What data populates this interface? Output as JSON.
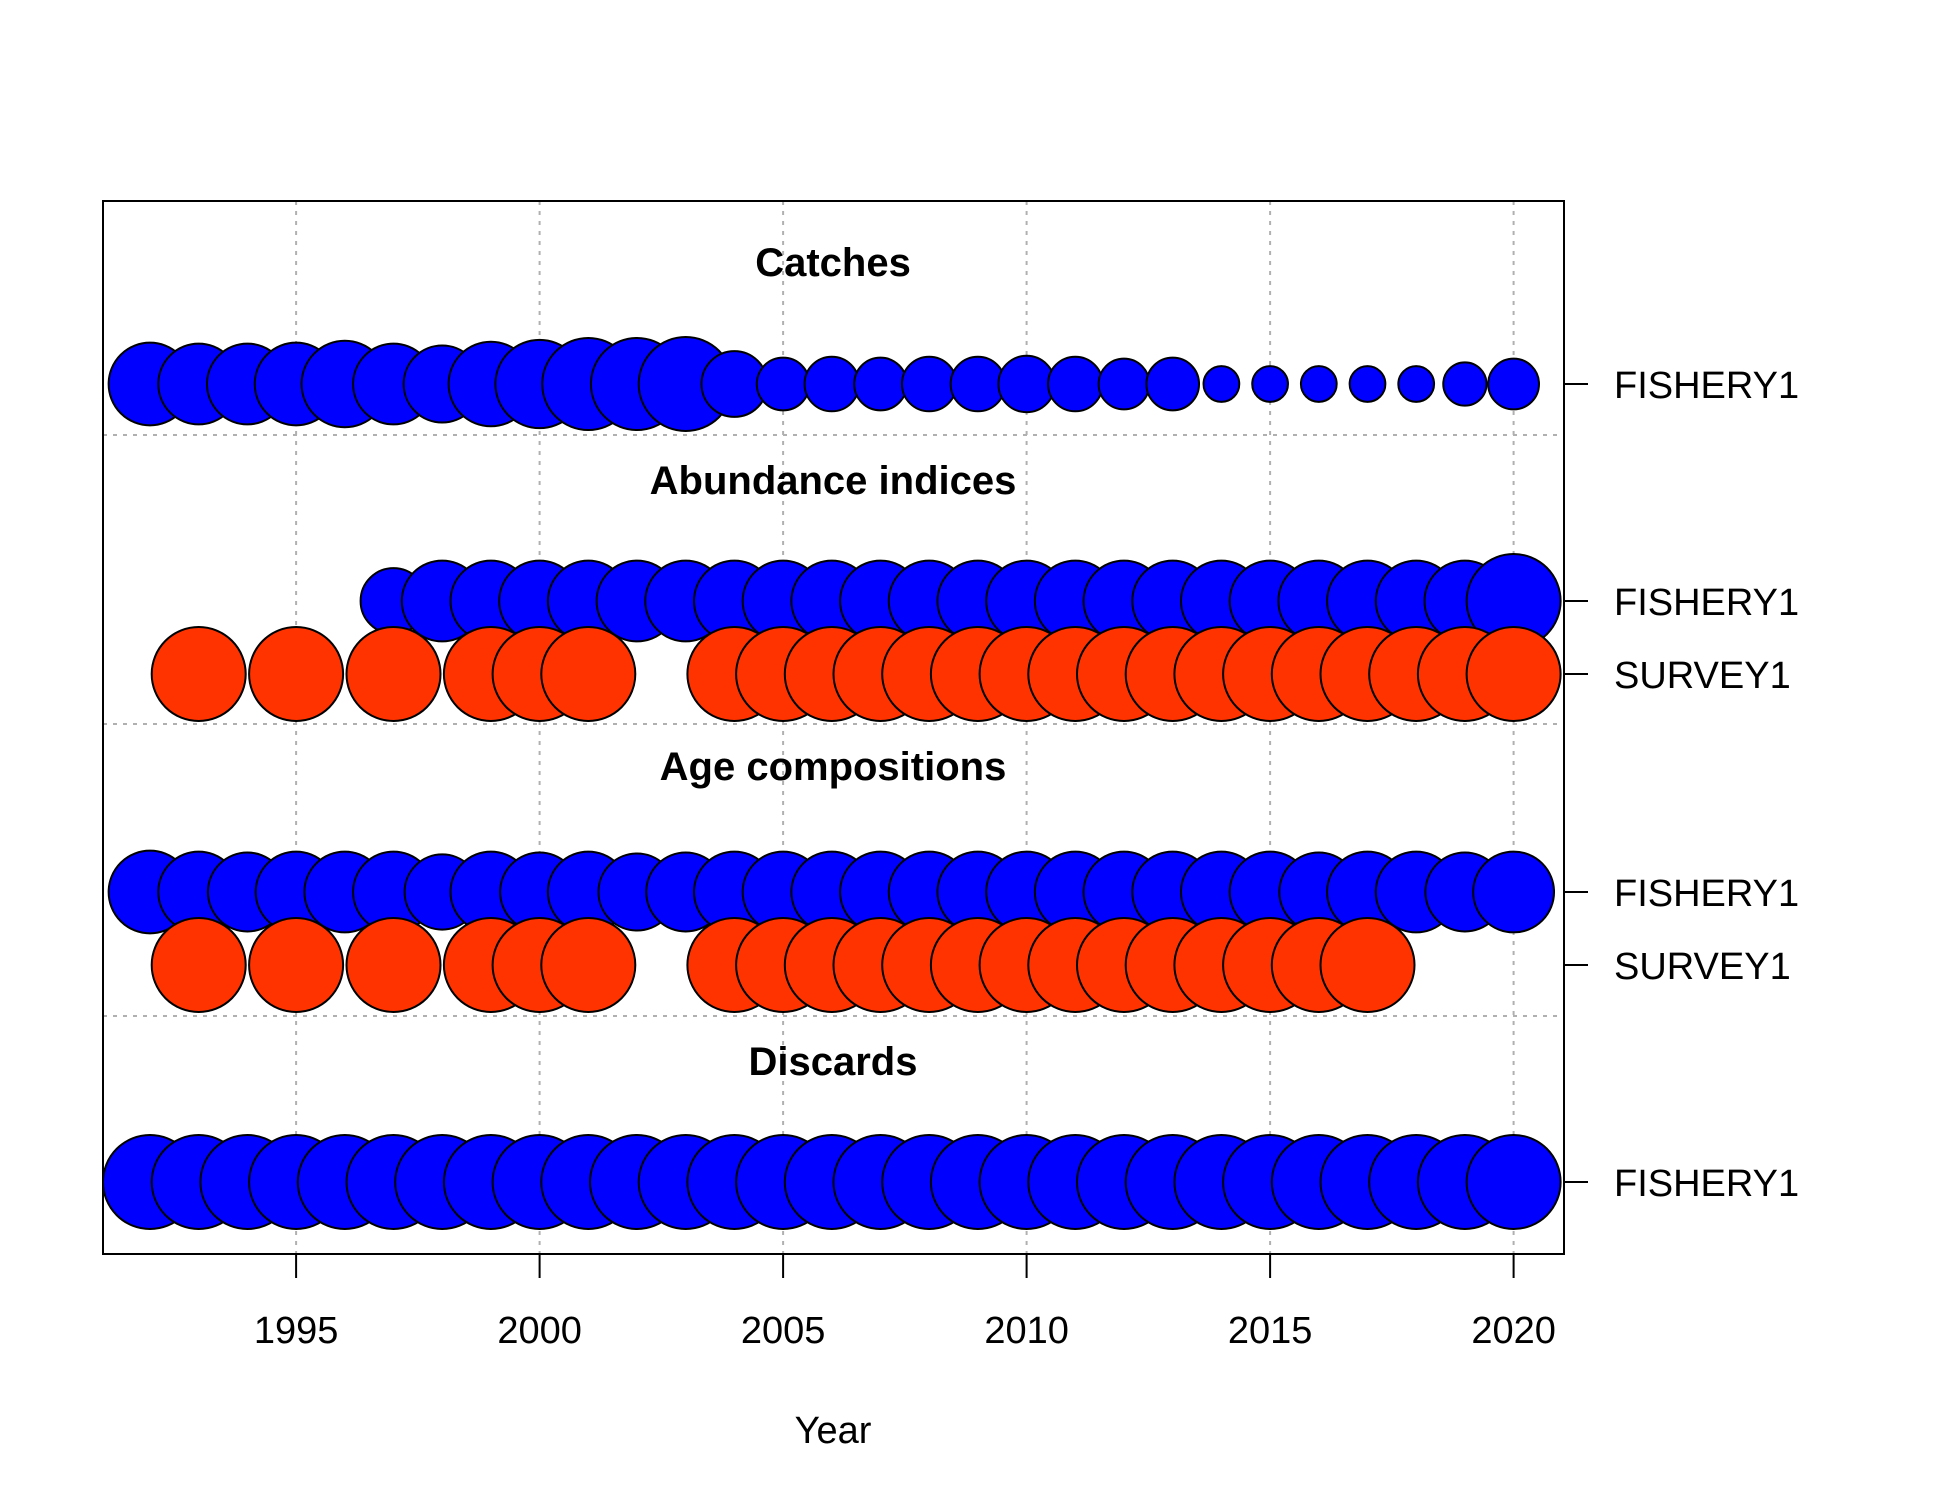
{
  "chart_data": {
    "type": "scatter",
    "xlabel": "Year",
    "xlim": [
      1991,
      2021
    ],
    "xticks": [
      1995,
      2000,
      2005,
      2010,
      2015,
      2020
    ],
    "grid": true,
    "colors": {
      "FISHERY1": "#0000ff",
      "SURVEY1": "#ff3300"
    },
    "sections": [
      {
        "title": "Catches",
        "series": [
          {
            "name": "FISHERY1",
            "x": [
              1992,
              1993,
              1994,
              1995,
              1996,
              1997,
              1998,
              1999,
              2000,
              2001,
              2002,
              2003,
              2004,
              2005,
              2006,
              2007,
              2008,
              2009,
              2010,
              2011,
              2012,
              2013,
              2014,
              2015,
              2016,
              2017,
              2018,
              2019,
              2020
            ],
            "size": [
              0.88,
              0.86,
              0.86,
              0.88,
              0.92,
              0.86,
              0.82,
              0.9,
              0.94,
              0.98,
              0.98,
              1.0,
              0.7,
              0.56,
              0.58,
              0.56,
              0.58,
              0.58,
              0.6,
              0.58,
              0.54,
              0.56,
              0.38,
              0.38,
              0.38,
              0.38,
              0.38,
              0.46,
              0.54
            ]
          }
        ]
      },
      {
        "title": "Abundance indices",
        "series": [
          {
            "name": "FISHERY1",
            "x": [
              1997,
              1998,
              1999,
              2000,
              2001,
              2002,
              2003,
              2004,
              2005,
              2006,
              2007,
              2008,
              2009,
              2010,
              2011,
              2012,
              2013,
              2014,
              2015,
              2016,
              2017,
              2018,
              2019,
              2020
            ],
            "size": [
              0.7,
              0.86,
              0.86,
              0.86,
              0.86,
              0.86,
              0.86,
              0.86,
              0.86,
              0.86,
              0.86,
              0.86,
              0.86,
              0.86,
              0.86,
              0.86,
              0.86,
              0.86,
              0.86,
              0.86,
              0.86,
              0.86,
              0.86,
              1.0
            ]
          },
          {
            "name": "SURVEY1",
            "x": [
              1993,
              1995,
              1997,
              1999,
              2000,
              2001,
              2004,
              2005,
              2006,
              2007,
              2008,
              2009,
              2010,
              2011,
              2012,
              2013,
              2014,
              2015,
              2016,
              2017,
              2018,
              2019,
              2020
            ],
            "size": [
              1.0,
              1.0,
              1.0,
              1.0,
              1.0,
              1.0,
              1.0,
              1.0,
              1.0,
              1.0,
              1.0,
              1.0,
              1.0,
              1.0,
              1.0,
              1.0,
              1.0,
              1.0,
              1.0,
              1.0,
              1.0,
              1.0,
              1.0
            ]
          }
        ]
      },
      {
        "title": "Age compositions",
        "series": [
          {
            "name": "FISHERY1",
            "x": [
              1992,
              1993,
              1994,
              1995,
              1996,
              1997,
              1998,
              1999,
              2000,
              2001,
              2002,
              2003,
              2004,
              2005,
              2006,
              2007,
              2008,
              2009,
              2010,
              2011,
              2012,
              2013,
              2014,
              2015,
              2016,
              2017,
              2018,
              2019,
              2020
            ],
            "size": [
              0.88,
              0.86,
              0.84,
              0.86,
              0.86,
              0.86,
              0.8,
              0.86,
              0.84,
              0.86,
              0.82,
              0.84,
              0.86,
              0.86,
              0.86,
              0.86,
              0.86,
              0.86,
              0.86,
              0.86,
              0.86,
              0.86,
              0.86,
              0.86,
              0.84,
              0.86,
              0.86,
              0.84,
              0.86
            ]
          },
          {
            "name": "SURVEY1",
            "x": [
              1993,
              1995,
              1997,
              1999,
              2000,
              2001,
              2004,
              2005,
              2006,
              2007,
              2008,
              2009,
              2010,
              2011,
              2012,
              2013,
              2014,
              2015,
              2016,
              2017
            ],
            "size": [
              1.0,
              1.0,
              1.0,
              1.0,
              1.0,
              1.0,
              1.0,
              1.0,
              1.0,
              1.0,
              1.0,
              1.0,
              1.0,
              1.0,
              1.0,
              1.0,
              1.0,
              1.0,
              1.0,
              1.0
            ]
          }
        ]
      },
      {
        "title": "Discards",
        "series": [
          {
            "name": "FISHERY1",
            "x": [
              1992,
              1993,
              1994,
              1995,
              1996,
              1997,
              1998,
              1999,
              2000,
              2001,
              2002,
              2003,
              2004,
              2005,
              2006,
              2007,
              2008,
              2009,
              2010,
              2011,
              2012,
              2013,
              2014,
              2015,
              2016,
              2017,
              2018,
              2019,
              2020
            ],
            "size": [
              1.0,
              1.0,
              1.0,
              1.0,
              1.0,
              1.0,
              1.0,
              1.0,
              1.0,
              1.0,
              1.0,
              1.0,
              1.0,
              1.0,
              1.0,
              1.0,
              1.0,
              1.0,
              1.0,
              1.0,
              1.0,
              1.0,
              1.0,
              1.0,
              1.0,
              1.0,
              1.0,
              1.0,
              1.0
            ]
          }
        ]
      }
    ]
  }
}
